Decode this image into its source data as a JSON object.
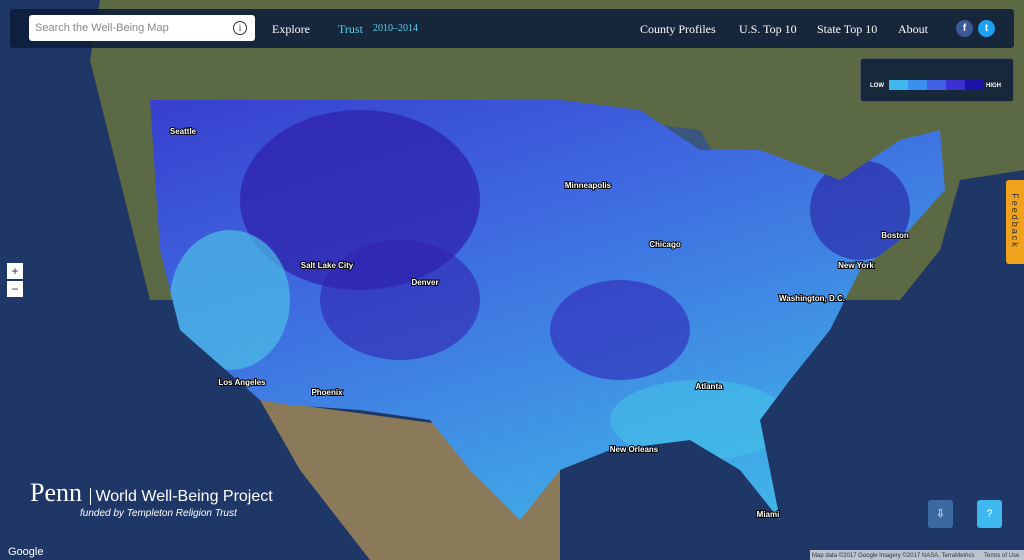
{
  "header": {
    "search_placeholder": "Search the Well-Being Map",
    "info": "i",
    "nav": {
      "explore": "Explore",
      "measure": "Trust",
      "years": "2010–2014",
      "links": [
        "County Profiles",
        "U.S. Top 10",
        "State Top 10",
        "About"
      ]
    },
    "social": [
      "f",
      "t"
    ]
  },
  "legend": {
    "low": "LOW",
    "high": "HIGH",
    "colors": [
      "#3fb8ef",
      "#3a8ff0",
      "#3f62e6",
      "#3a2fd0",
      "#1c12a8"
    ]
  },
  "zoom": {
    "in": "+",
    "out": "−"
  },
  "feedback": "Feedback",
  "cities": [
    "Seattle",
    "Minneapolis",
    "Chicago",
    "Boston",
    "New York",
    "Washington, D.C.",
    "Salt Lake City",
    "Denver",
    "Los Angeles",
    "Phoenix",
    "Atlanta",
    "New Orleans",
    "Miami"
  ],
  "branding": {
    "logo": "Penn",
    "project": "World Well-Being Project",
    "funding": "funded by Templeton Religion Trust"
  },
  "footer": {
    "google": "Google",
    "attribution": "Map data ©2017 Google Imagery ©2017 NASA, TerraMetrics",
    "terms": "Terms of Use"
  },
  "buttons": {
    "download": "⇩",
    "help": "?"
  }
}
